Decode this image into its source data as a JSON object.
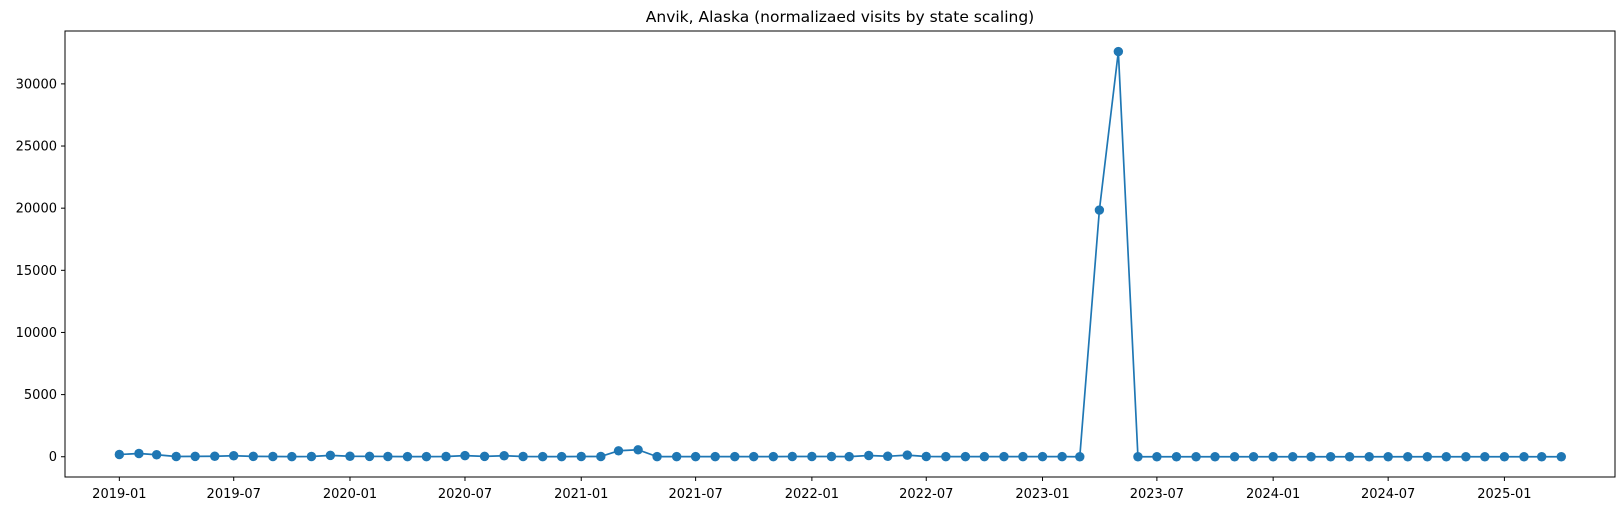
{
  "chart_data": {
    "type": "line",
    "title": "Anvik, Alaska (normalizaed visits by state scaling)",
    "xlabel": "",
    "ylabel": "",
    "x_range": [
      "2018-10-07",
      "2025-06-25"
    ],
    "ylim": [
      -1630,
      34255
    ],
    "grid": false,
    "x_ticks": [
      "2019-01",
      "2019-07",
      "2020-01",
      "2020-07",
      "2021-01",
      "2021-07",
      "2022-01",
      "2022-07",
      "2023-01",
      "2023-07",
      "2024-01",
      "2024-07",
      "2025-01"
    ],
    "y_ticks": [
      "0",
      "5000",
      "10000",
      "15000",
      "20000",
      "25000",
      "30000"
    ],
    "series": [
      {
        "color": "#1f77b4",
        "marker": "circle",
        "x": [
          "2019-01",
          "2019-02",
          "2019-03",
          "2019-04",
          "2019-05",
          "2019-06",
          "2019-07",
          "2019-08",
          "2019-09",
          "2019-10",
          "2019-11",
          "2019-12",
          "2020-01",
          "2020-02",
          "2020-03",
          "2020-04",
          "2020-05",
          "2020-06",
          "2020-07",
          "2020-08",
          "2020-09",
          "2020-10",
          "2020-11",
          "2020-12",
          "2021-01",
          "2021-02",
          "2021-03",
          "2021-04",
          "2021-05",
          "2021-06",
          "2021-07",
          "2021-08",
          "2021-09",
          "2021-10",
          "2021-11",
          "2021-12",
          "2022-01",
          "2022-02",
          "2022-03",
          "2022-04",
          "2022-05",
          "2022-06",
          "2022-07",
          "2022-08",
          "2022-09",
          "2022-10",
          "2022-11",
          "2022-12",
          "2023-01",
          "2023-02",
          "2023-03",
          "2023-04",
          "2023-05",
          "2023-06",
          "2023-07",
          "2023-08",
          "2023-09",
          "2023-10",
          "2023-11",
          "2023-12",
          "2024-01",
          "2024-02",
          "2024-03",
          "2024-04",
          "2024-05",
          "2024-06",
          "2024-07",
          "2024-08",
          "2024-09",
          "2024-10",
          "2024-11",
          "2024-12",
          "2025-01",
          "2025-02",
          "2025-03",
          "2025-04"
        ],
        "values": [
          180,
          260,
          160,
          20,
          30,
          40,
          80,
          30,
          20,
          10,
          20,
          110,
          40,
          30,
          20,
          10,
          10,
          20,
          90,
          30,
          80,
          20,
          10,
          10,
          20,
          20,
          480,
          560,
          10,
          10,
          10,
          10,
          10,
          10,
          10,
          20,
          20,
          20,
          10,
          100,
          40,
          130,
          20,
          10,
          10,
          10,
          10,
          10,
          10,
          10,
          0,
          19850,
          32600,
          0,
          0,
          0,
          0,
          0,
          0,
          0,
          0,
          0,
          0,
          0,
          0,
          0,
          0,
          0,
          0,
          0,
          0,
          0,
          0,
          0,
          0,
          0
        ]
      }
    ]
  }
}
